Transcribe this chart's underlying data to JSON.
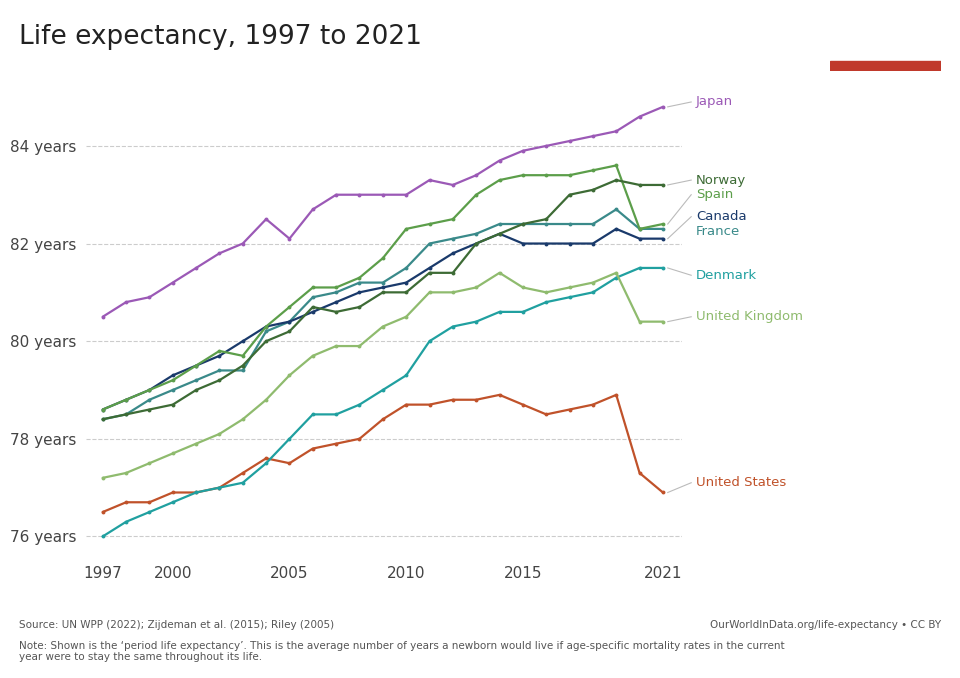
{
  "title": "Life expectancy, 1997 to 2021",
  "years": [
    1997,
    1998,
    1999,
    2000,
    2001,
    2002,
    2003,
    2004,
    2005,
    2006,
    2007,
    2008,
    2009,
    2010,
    2011,
    2012,
    2013,
    2014,
    2015,
    2016,
    2017,
    2018,
    2019,
    2020,
    2021
  ],
  "series": {
    "Japan": {
      "color": "#9b59b6",
      "values": [
        80.5,
        80.8,
        80.9,
        81.2,
        81.5,
        81.8,
        82.0,
        82.5,
        82.1,
        82.7,
        83.0,
        83.0,
        83.0,
        83.0,
        83.3,
        83.2,
        83.4,
        83.7,
        83.9,
        84.0,
        84.1,
        84.2,
        84.3,
        84.6,
        84.8
      ],
      "label": "Japan"
    },
    "Norway": {
      "color": "#3d6b35",
      "values": [
        78.4,
        78.5,
        78.6,
        78.7,
        79.0,
        79.2,
        79.5,
        80.0,
        80.2,
        80.7,
        80.6,
        80.7,
        81.0,
        81.0,
        81.4,
        81.4,
        82.0,
        82.2,
        82.4,
        82.5,
        83.0,
        83.1,
        83.3,
        83.2,
        83.2
      ],
      "label": "Norway"
    },
    "Spain": {
      "color": "#5c9e4a",
      "values": [
        78.6,
        78.8,
        79.0,
        79.2,
        79.5,
        79.8,
        79.7,
        80.3,
        80.7,
        81.1,
        81.1,
        81.3,
        81.7,
        82.3,
        82.4,
        82.5,
        83.0,
        83.3,
        83.4,
        83.4,
        83.4,
        83.5,
        83.6,
        82.3,
        82.4
      ],
      "label": "Spain"
    },
    "Canada": {
      "color": "#1a3a6b",
      "values": [
        78.6,
        78.8,
        79.0,
        79.3,
        79.5,
        79.7,
        80.0,
        80.3,
        80.4,
        80.6,
        80.8,
        81.0,
        81.1,
        81.2,
        81.5,
        81.8,
        82.0,
        82.2,
        82.0,
        82.0,
        82.0,
        82.0,
        82.3,
        82.1,
        82.1
      ],
      "label": "Canada"
    },
    "France": {
      "color": "#3a8a8a",
      "values": [
        78.4,
        78.5,
        78.8,
        79.0,
        79.2,
        79.4,
        79.4,
        80.2,
        80.4,
        80.9,
        81.0,
        81.2,
        81.2,
        81.5,
        82.0,
        82.1,
        82.2,
        82.4,
        82.4,
        82.4,
        82.4,
        82.4,
        82.7,
        82.3,
        82.3
      ],
      "label": "France"
    },
    "Denmark": {
      "color": "#20a0a0",
      "values": [
        76.0,
        76.3,
        76.5,
        76.7,
        76.9,
        77.0,
        77.1,
        77.5,
        78.0,
        78.5,
        78.5,
        78.7,
        79.0,
        79.3,
        80.0,
        80.3,
        80.4,
        80.6,
        80.6,
        80.8,
        80.9,
        81.0,
        81.3,
        81.5,
        81.5
      ],
      "label": "Denmark"
    },
    "United Kingdom": {
      "color": "#8fbb6e",
      "values": [
        77.2,
        77.3,
        77.5,
        77.7,
        77.9,
        78.1,
        78.4,
        78.8,
        79.3,
        79.7,
        79.9,
        79.9,
        80.3,
        80.5,
        81.0,
        81.0,
        81.1,
        81.4,
        81.1,
        81.0,
        81.1,
        81.2,
        81.4,
        80.4,
        80.4
      ],
      "label": "United Kingdom"
    },
    "United States": {
      "color": "#c0522a",
      "values": [
        76.5,
        76.7,
        76.7,
        76.9,
        76.9,
        77.0,
        77.3,
        77.6,
        77.5,
        77.8,
        77.9,
        78.0,
        78.4,
        78.7,
        78.7,
        78.8,
        78.8,
        78.9,
        78.7,
        78.5,
        78.6,
        78.7,
        78.9,
        77.3,
        76.9
      ],
      "label": "United States"
    }
  },
  "ylim": [
    75.6,
    85.6
  ],
  "yticks": [
    76,
    78,
    80,
    82,
    84
  ],
  "ytick_labels": [
    "76 years",
    "78 years",
    "80 years",
    "82 years",
    "84 years"
  ],
  "xlim": [
    1996.3,
    2021.8
  ],
  "xticks": [
    1997,
    2000,
    2005,
    2010,
    2015,
    2021
  ],
  "source_text": "Source: UN WPP (2022); Zijdeman et al. (2015); Riley (2005)",
  "source_right": "OurWorldInData.org/life-expectancy • CC BY",
  "note_text": "Note: Shown is the ‘period life expectancy’. This is the average number of years a newborn would live if age-specific mortality rates in the current\nyear were to stay the same throughout its life.",
  "bg_color": "#ffffff",
  "grid_color": "#cccccc",
  "label_info": {
    "Japan": {
      "y_label": 84.9,
      "color": "#9b59b6"
    },
    "Norway": {
      "y_label": 83.3,
      "color": "#3d6b35"
    },
    "Spain": {
      "y_label": 83.0,
      "color": "#5c9e4a"
    },
    "Canada": {
      "y_label": 82.55,
      "color": "#1a3a6b"
    },
    "France": {
      "y_label": 82.25,
      "color": "#3a8a8a"
    },
    "Denmark": {
      "y_label": 81.35,
      "color": "#20a0a0"
    },
    "United Kingdom": {
      "y_label": 80.5,
      "color": "#8fbb6e"
    },
    "United States": {
      "y_label": 77.1,
      "color": "#c0522a"
    }
  }
}
